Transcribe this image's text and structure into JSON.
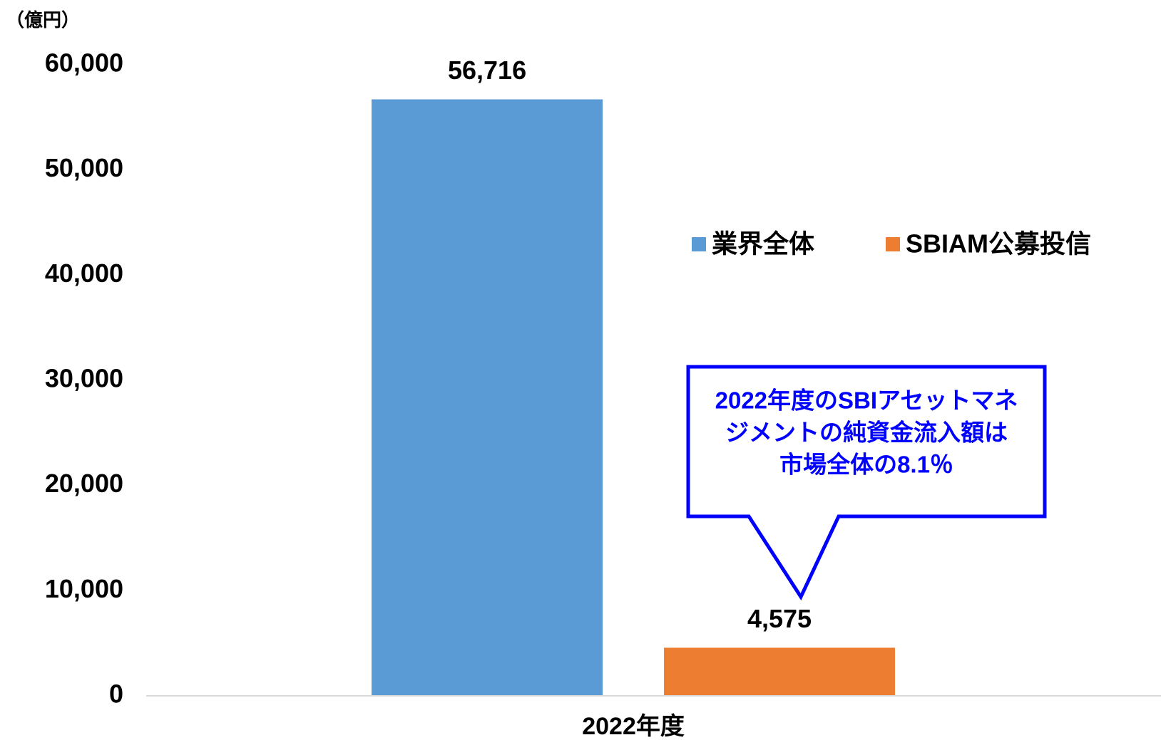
{
  "chart_data": {
    "type": "bar",
    "unit_label": "（億円）",
    "categories": [
      "2022年度"
    ],
    "series": [
      {
        "name": "業界全体",
        "color": "#5b9bd5",
        "values": [
          56716
        ],
        "value_labels": [
          "56,716"
        ]
      },
      {
        "name": "SBIAM公募投信",
        "color": "#ed7d31",
        "values": [
          4575
        ],
        "value_labels": [
          "4,575"
        ]
      }
    ],
    "ylim": [
      0,
      60000
    ],
    "yticks": [
      0,
      {
        "value": 10000,
        "label": "10,000"
      },
      {
        "value": 20000,
        "label": "20,000"
      },
      {
        "value": 30000,
        "label": "30,000"
      },
      {
        "value": 40000,
        "label": "40,000"
      },
      {
        "value": 50000,
        "label": "50,000"
      },
      {
        "value": 60000,
        "label": "60,000"
      }
    ],
    "annotation": [
      "2022年度のSBIアセットマネ",
      "ジメントの純資金流入額は",
      "市場全体の8.1％"
    ]
  }
}
